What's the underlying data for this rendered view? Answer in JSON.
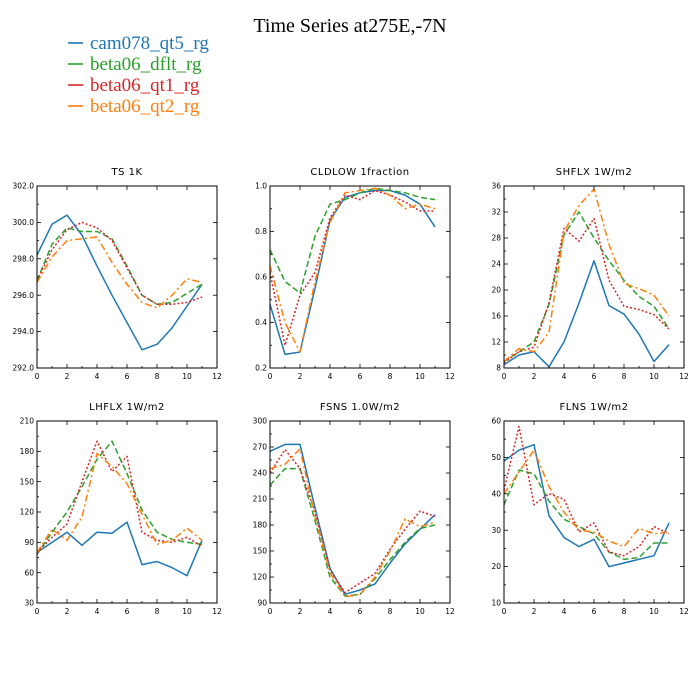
{
  "figure": {
    "title": "Time Series at275E,-7N"
  },
  "legend": [
    {
      "name": "cam078_qt5_rg",
      "color": "#1f77b4",
      "dash": "solid"
    },
    {
      "name": "beta06_dflt_rg",
      "color": "#2ca02c",
      "dash": "dashed"
    },
    {
      "name": "beta06_qt1_rg",
      "color": "#d62728",
      "dash": "dotted"
    },
    {
      "name": "beta06_qt2_rg",
      "color": "#ff7f0e",
      "dash": "dashdot"
    }
  ],
  "chart_data": [
    {
      "type": "line",
      "title": "TS   1K",
      "xlim": [
        0,
        12
      ],
      "xticks": [
        "0",
        "2",
        "4",
        "6",
        "8",
        "10",
        "12"
      ],
      "xticks_values": [
        0,
        2,
        4,
        6,
        8,
        10,
        12
      ],
      "ylim": [
        292.0,
        302.0
      ],
      "yticks": [
        "292.0",
        "294.0",
        "296.0",
        "298.0",
        "300.0",
        "302.0"
      ],
      "yticks_values": [
        292,
        294,
        296,
        298,
        300,
        302
      ],
      "x": [
        0,
        1,
        2,
        3,
        4,
        5,
        6,
        7,
        8,
        9,
        10,
        11
      ],
      "series": [
        {
          "name": "cam078_qt5_rg",
          "values": [
            298.2,
            299.9,
            300.4,
            299.3,
            297.6,
            296.0,
            294.5,
            293.0,
            293.3,
            294.2,
            295.4,
            296.6
          ]
        },
        {
          "name": "beta06_dflt_rg",
          "values": [
            296.8,
            298.8,
            299.7,
            299.5,
            299.5,
            299.1,
            297.6,
            296.0,
            295.5,
            295.6,
            296.1,
            296.6
          ]
        },
        {
          "name": "beta06_qt1_rg",
          "values": [
            296.8,
            298.5,
            299.6,
            300.0,
            299.7,
            299.0,
            297.5,
            296.0,
            295.5,
            295.5,
            295.6,
            295.9
          ]
        },
        {
          "name": "beta06_qt2_rg",
          "values": [
            296.7,
            298.1,
            299.0,
            299.1,
            299.2,
            297.8,
            296.6,
            295.6,
            295.3,
            296.0,
            296.9,
            296.7
          ]
        }
      ]
    },
    {
      "type": "line",
      "title": "CLDLOW   1fraction",
      "xlim": [
        0,
        12
      ],
      "xticks": [
        "0",
        "2",
        "4",
        "6",
        "8",
        "10",
        "12"
      ],
      "xticks_values": [
        0,
        2,
        4,
        6,
        8,
        10,
        12
      ],
      "ylim": [
        0.2,
        1.0
      ],
      "yticks": [
        "0.2",
        "0.4",
        "0.6",
        "0.8",
        "1.0"
      ],
      "yticks_values": [
        0.2,
        0.4,
        0.6,
        0.8,
        1.0
      ],
      "x": [
        0,
        1,
        2,
        3,
        4,
        5,
        6,
        7,
        8,
        9,
        10,
        11
      ],
      "series": [
        {
          "name": "cam078_qt5_rg",
          "values": [
            0.48,
            0.26,
            0.27,
            0.55,
            0.85,
            0.95,
            0.97,
            0.98,
            0.98,
            0.96,
            0.92,
            0.82
          ]
        },
        {
          "name": "beta06_dflt_rg",
          "values": [
            0.72,
            0.58,
            0.53,
            0.78,
            0.92,
            0.94,
            0.97,
            0.99,
            0.98,
            0.97,
            0.95,
            0.94
          ]
        },
        {
          "name": "beta06_qt1_rg",
          "values": [
            0.62,
            0.3,
            0.52,
            0.62,
            0.86,
            0.96,
            0.94,
            0.98,
            0.96,
            0.93,
            0.89,
            0.89
          ]
        },
        {
          "name": "beta06_qt2_rg",
          "values": [
            0.65,
            0.4,
            0.27,
            0.58,
            0.84,
            0.97,
            0.98,
            0.99,
            0.96,
            0.9,
            0.92,
            0.9
          ]
        }
      ]
    },
    {
      "type": "line",
      "title": "SHFLX   1W/m2",
      "xlim": [
        0,
        12
      ],
      "xticks": [
        "0",
        "2",
        "4",
        "6",
        "8",
        "10",
        "12"
      ],
      "xticks_values": [
        0,
        2,
        4,
        6,
        8,
        10,
        12
      ],
      "ylim": [
        8,
        36
      ],
      "yticks": [
        "8",
        "12",
        "16",
        "20",
        "24",
        "28",
        "32",
        "36"
      ],
      "yticks_values": [
        8,
        12,
        16,
        20,
        24,
        28,
        32,
        36
      ],
      "x": [
        0,
        1,
        2,
        3,
        4,
        5,
        6,
        7,
        8,
        9,
        10,
        11
      ],
      "series": [
        {
          "name": "cam078_qt5_rg",
          "values": [
            8.5,
            10.0,
            10.5,
            8.2,
            12.0,
            18.0,
            24.5,
            17.6,
            16.3,
            13.2,
            9.0,
            11.6
          ]
        },
        {
          "name": "beta06_dflt_rg",
          "values": [
            9.0,
            10.5,
            12.0,
            17.8,
            28.5,
            32.0,
            28.0,
            24.5,
            21.5,
            19.0,
            17.5,
            14.0
          ]
        },
        {
          "name": "beta06_qt1_rg",
          "values": [
            8.8,
            10.5,
            11.2,
            18.0,
            29.5,
            27.5,
            31.0,
            21.5,
            17.5,
            17.0,
            16.2,
            14.0
          ]
        },
        {
          "name": "beta06_qt2_rg",
          "values": [
            9.0,
            11.0,
            10.5,
            13.5,
            29.0,
            33.0,
            35.5,
            27.0,
            21.0,
            20.2,
            19.2,
            16.0
          ]
        }
      ]
    },
    {
      "type": "line",
      "title": "LHFLX   1W/m2",
      "xlim": [
        0,
        12
      ],
      "xticks": [
        "0",
        "2",
        "4",
        "6",
        "8",
        "10",
        "12"
      ],
      "xticks_values": [
        0,
        2,
        4,
        6,
        8,
        10,
        12
      ],
      "ylim": [
        30,
        210
      ],
      "yticks": [
        "30",
        "60",
        "90",
        "120",
        "150",
        "180",
        "210"
      ],
      "yticks_values": [
        30,
        60,
        90,
        120,
        150,
        180,
        210
      ],
      "x": [
        0,
        1,
        2,
        3,
        4,
        5,
        6,
        7,
        8,
        9,
        10,
        11
      ],
      "series": [
        {
          "name": "cam078_qt5_rg",
          "values": [
            80,
            90,
            100,
            87,
            100,
            99,
            110,
            68,
            71,
            65,
            57,
            92
          ]
        },
        {
          "name": "beta06_dflt_rg",
          "values": [
            78,
            100,
            120,
            145,
            172,
            190,
            158,
            122,
            100,
            93,
            90,
            88
          ]
        },
        {
          "name": "beta06_qt1_rg",
          "values": [
            80,
            95,
            108,
            150,
            190,
            160,
            175,
            100,
            92,
            90,
            95,
            86
          ]
        },
        {
          "name": "beta06_qt2_rg",
          "values": [
            80,
            103,
            92,
            115,
            178,
            165,
            148,
            118,
            88,
            92,
            104,
            92
          ]
        }
      ]
    },
    {
      "type": "line",
      "title": "FSNS   1.0W/m2",
      "xlim": [
        0,
        12
      ],
      "xticks": [
        "0",
        "2",
        "4",
        "6",
        "8",
        "10",
        "12"
      ],
      "xticks_values": [
        0,
        2,
        4,
        6,
        8,
        10,
        12
      ],
      "ylim": [
        90,
        300
      ],
      "yticks": [
        "90",
        "120",
        "150",
        "180",
        "210",
        "240",
        "270",
        "300"
      ],
      "yticks_values": [
        90,
        120,
        150,
        180,
        210,
        240,
        270,
        300
      ],
      "x": [
        0,
        1,
        2,
        3,
        4,
        5,
        6,
        7,
        8,
        9,
        10,
        11
      ],
      "series": [
        {
          "name": "cam078_qt5_rg",
          "values": [
            265,
            273,
            273,
            200,
            130,
            100,
            105,
            112,
            136,
            158,
            175,
            192
          ]
        },
        {
          "name": "beta06_dflt_rg",
          "values": [
            226,
            245,
            245,
            185,
            120,
            98,
            100,
            118,
            140,
            160,
            176,
            180
          ]
        },
        {
          "name": "beta06_qt1_rg",
          "values": [
            240,
            267,
            245,
            195,
            128,
            102,
            113,
            124,
            152,
            175,
            196,
            190
          ]
        },
        {
          "name": "beta06_qt2_rg",
          "values": [
            245,
            250,
            268,
            190,
            125,
            97,
            100,
            120,
            150,
            187,
            178,
            183
          ]
        }
      ]
    },
    {
      "type": "line",
      "title": "FLNS   1W/m2",
      "xlim": [
        0,
        12
      ],
      "xticks": [
        "0",
        "2",
        "4",
        "6",
        "8",
        "10",
        "12"
      ],
      "xticks_values": [
        0,
        2,
        4,
        6,
        8,
        10,
        12
      ],
      "ylim": [
        10,
        60
      ],
      "yticks": [
        "10",
        "20",
        "30",
        "40",
        "50",
        "60"
      ],
      "yticks_values": [
        10,
        20,
        30,
        40,
        50,
        60
      ],
      "x": [
        0,
        1,
        2,
        3,
        4,
        5,
        6,
        7,
        8,
        9,
        10,
        11
      ],
      "series": [
        {
          "name": "cam078_qt5_rg",
          "values": [
            49,
            52,
            53.5,
            34,
            28,
            25.5,
            27.5,
            20,
            21,
            22,
            23,
            32
          ]
        },
        {
          "name": "beta06_dflt_rg",
          "values": [
            37,
            46.5,
            45.5,
            38,
            33,
            31,
            29,
            24,
            22,
            22.5,
            26.5,
            26.5
          ]
        },
        {
          "name": "beta06_qt1_rg",
          "values": [
            41,
            58.5,
            37,
            40,
            38.5,
            29.5,
            32,
            24,
            23,
            25.5,
            31,
            29
          ]
        },
        {
          "name": "beta06_qt2_rg",
          "values": [
            40,
            46,
            52,
            42,
            35,
            30,
            29.5,
            27,
            25.5,
            30.5,
            29,
            29.5
          ]
        }
      ]
    }
  ]
}
